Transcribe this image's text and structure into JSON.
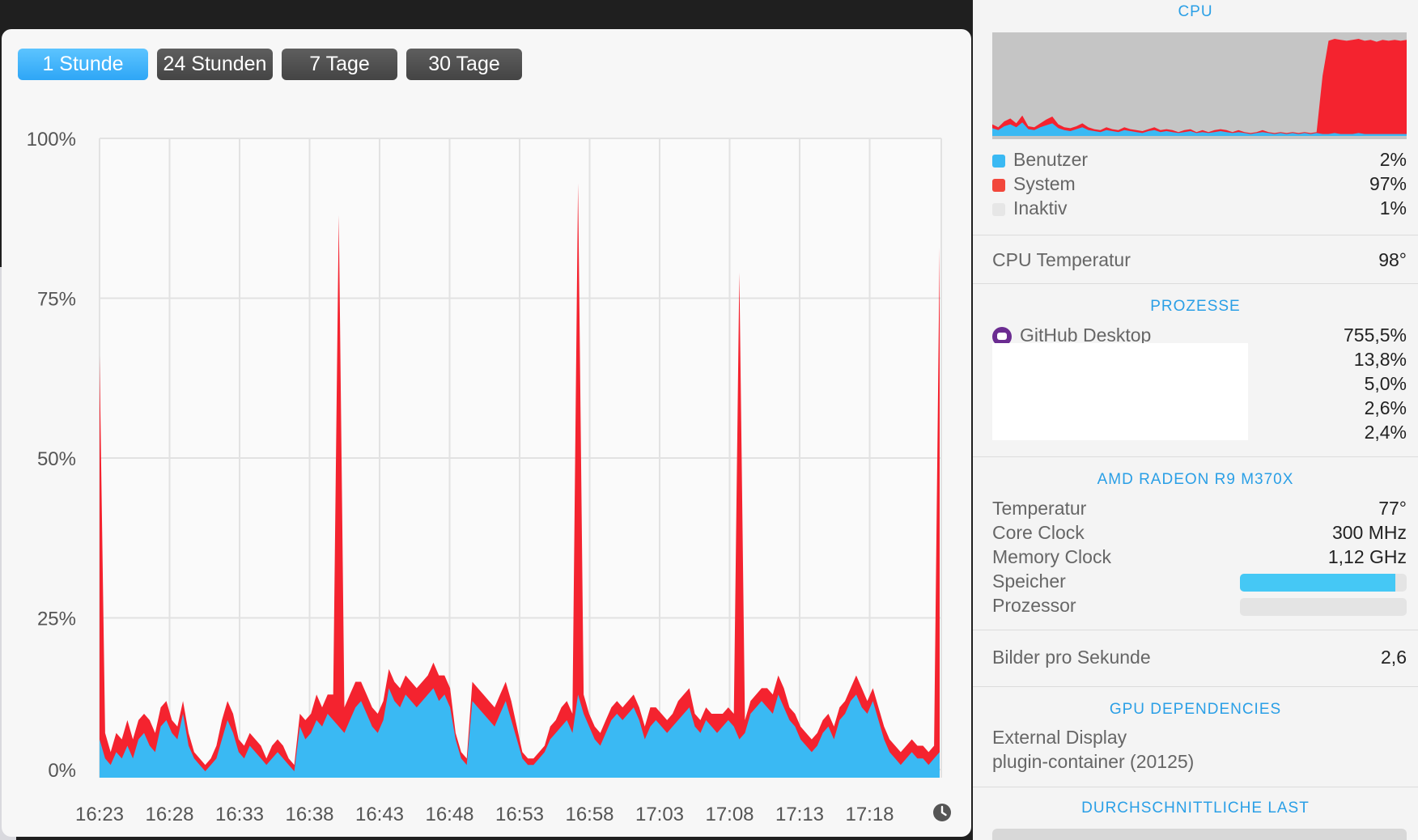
{
  "range_tabs": [
    {
      "label": "1 Stunde",
      "active": true
    },
    {
      "label": "24 Stunden",
      "active": false
    },
    {
      "label": "7 Tage",
      "active": false
    },
    {
      "label": "30 Tage",
      "active": false
    }
  ],
  "chart_data": {
    "type": "area",
    "ylim": [
      0,
      100
    ],
    "y_ticks": [
      "100%",
      "75%",
      "50%",
      "25%",
      "0%"
    ],
    "x_ticks": [
      "16:23",
      "16:28",
      "16:33",
      "16:38",
      "16:43",
      "16:48",
      "16:53",
      "16:58",
      "17:03",
      "17:08",
      "17:13",
      "17:18"
    ],
    "grid": true,
    "colors": {
      "system": "#f4232f",
      "user": "#3ab9f3"
    },
    "series": [
      {
        "name": "Benutzer",
        "color": "#3ab9f3",
        "values": [
          6,
          3,
          2,
          4,
          3,
          5,
          3,
          6,
          7,
          5,
          4,
          8,
          9,
          7,
          6,
          10,
          5,
          3,
          2,
          1,
          2,
          3,
          6,
          9,
          7,
          4,
          3,
          5,
          4,
          3,
          2,
          3,
          4,
          3,
          2,
          1,
          8,
          6,
          7,
          9,
          8,
          10,
          9,
          8,
          7,
          9,
          11,
          12,
          10,
          8,
          7,
          9,
          14,
          12,
          11,
          13,
          12,
          11,
          12,
          13,
          14,
          12,
          13,
          11,
          6,
          3,
          2,
          12,
          11,
          10,
          9,
          8,
          10,
          12,
          9,
          6,
          3,
          2,
          2,
          3,
          4,
          6,
          7,
          8,
          9,
          7,
          13,
          10,
          8,
          6,
          5,
          7,
          9,
          10,
          9,
          10,
          11,
          9,
          6,
          8,
          9,
          8,
          7,
          8,
          9,
          10,
          11,
          8,
          7,
          9,
          8,
          7,
          8,
          9,
          8,
          6,
          7,
          10,
          11,
          12,
          11,
          10,
          13,
          11,
          9,
          8,
          6,
          5,
          4,
          5,
          7,
          8,
          6,
          9,
          10,
          12,
          13,
          11,
          10,
          12,
          9,
          6,
          4,
          3,
          2,
          3,
          4,
          3,
          3,
          2,
          3,
          4
        ]
      },
      {
        "name": "System",
        "color": "#f4232f",
        "values": [
          60,
          4,
          2,
          3,
          3,
          4,
          3,
          3,
          3,
          4,
          3,
          3,
          3,
          2,
          2,
          2,
          2,
          1,
          1,
          1,
          1,
          2,
          3,
          3,
          3,
          2,
          2,
          2,
          2,
          2,
          1,
          2,
          2,
          2,
          1,
          1,
          2,
          3,
          3,
          4,
          3,
          3,
          4,
          80,
          4,
          4,
          4,
          3,
          3,
          3,
          3,
          3,
          3,
          3,
          3,
          3,
          3,
          3,
          3,
          3,
          4,
          4,
          3,
          3,
          1,
          1,
          1,
          3,
          3,
          3,
          3,
          3,
          3,
          3,
          3,
          2,
          1,
          1,
          1,
          1,
          1,
          2,
          2,
          3,
          3,
          3,
          80,
          3,
          2,
          2,
          2,
          2,
          2,
          2,
          2,
          2,
          2,
          2,
          2,
          3,
          2,
          2,
          2,
          2,
          3,
          3,
          3,
          2,
          2,
          2,
          2,
          3,
          2,
          2,
          2,
          73,
          2,
          2,
          2,
          2,
          3,
          3,
          3,
          3,
          2,
          2,
          2,
          2,
          2,
          2,
          2,
          2,
          2,
          2,
          2,
          2,
          3,
          3,
          2,
          2,
          2,
          2,
          2,
          2,
          2,
          2,
          2,
          2,
          2,
          2,
          2,
          79
        ]
      }
    ]
  },
  "clock_icon": "clock-icon",
  "cpu": {
    "title": "CPU",
    "mini_history": {
      "user": [
        8,
        6,
        10,
        12,
        9,
        14,
        7,
        6,
        9,
        11,
        13,
        8,
        6,
        5,
        7,
        9,
        6,
        5,
        4,
        6,
        5,
        4,
        6,
        5,
        4,
        3,
        5,
        6,
        4,
        5,
        4,
        3,
        4,
        5,
        3,
        4,
        3,
        4,
        5,
        4,
        3,
        4,
        3,
        2,
        3,
        4,
        3,
        2,
        3,
        2,
        3,
        2,
        3,
        2,
        3,
        2,
        2,
        3,
        2,
        2,
        2,
        3,
        2,
        2,
        2,
        2,
        2,
        2,
        2,
        2
      ],
      "system": [
        4,
        3,
        5,
        6,
        4,
        7,
        3,
        3,
        4,
        6,
        7,
        4,
        3,
        3,
        3,
        4,
        3,
        2,
        2,
        3,
        2,
        2,
        3,
        2,
        2,
        2,
        2,
        3,
        2,
        2,
        2,
        1,
        2,
        2,
        1,
        2,
        1,
        2,
        2,
        2,
        1,
        2,
        1,
        1,
        1,
        2,
        1,
        1,
        1,
        1,
        1,
        1,
        1,
        1,
        1,
        60,
        96,
        97,
        97,
        96,
        97,
        97,
        96,
        97,
        95,
        97,
        96,
        97,
        96,
        97
      ]
    },
    "rows": [
      {
        "label": "Benutzer",
        "value": "2%",
        "color": "#3ab9f3"
      },
      {
        "label": "System",
        "value": "97%",
        "color": "#f2473b"
      },
      {
        "label": "Inaktiv",
        "value": "1%",
        "color": "#e6e6e6"
      }
    ],
    "temperature_label": "CPU Temperatur",
    "temperature_value": "98°"
  },
  "processes": {
    "title": "PROZESSE",
    "items": [
      {
        "name": "GitHub Desktop",
        "value": "755,5%",
        "icon": "github-desktop-icon"
      },
      {
        "name": "",
        "value": "13,8%"
      },
      {
        "name": "",
        "value": "5,0%"
      },
      {
        "name": "",
        "value": "2,6%"
      },
      {
        "name": "",
        "value": "2,4%"
      }
    ]
  },
  "gpu": {
    "title": "AMD RADEON R9 M370X",
    "rows": [
      {
        "label": "Temperatur",
        "value": "77°"
      },
      {
        "label": "Core Clock",
        "value": "300 MHz"
      },
      {
        "label": "Memory Clock",
        "value": "1,12 GHz"
      }
    ],
    "memory_label": "Speicher",
    "memory_fraction": 0.93,
    "processor_label": "Prozessor",
    "processor_fraction": 0.0,
    "fps_label": "Bilder pro Sekunde",
    "fps_value": "2,6"
  },
  "gpu_dependencies": {
    "title": "GPU DEPENDENCIES",
    "items": [
      "External Display",
      "plugin-container (20125)"
    ]
  },
  "load": {
    "title": "DURCHSCHNITTLICHE LAST"
  }
}
